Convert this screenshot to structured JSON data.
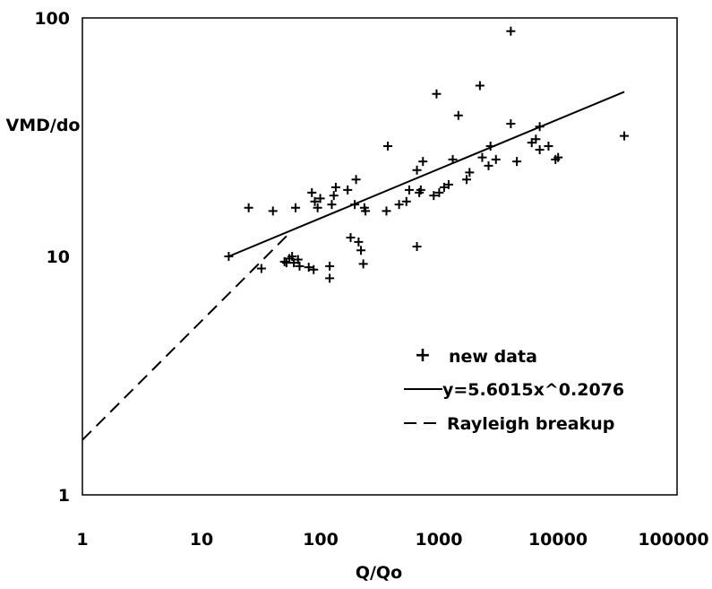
{
  "chart_data": {
    "type": "scatter",
    "title": "",
    "xlabel": "Q/Qo",
    "ylabel": "VMD/do",
    "x_scale": "log",
    "y_scale": "log",
    "xlim": [
      1,
      100000
    ],
    "ylim": [
      1,
      100
    ],
    "x_ticks": [
      "1",
      "10",
      "100",
      "1000",
      "10000",
      "100000"
    ],
    "y_ticks": [
      "1",
      "10",
      "100"
    ],
    "grid": false,
    "legend_position": "bottom-right",
    "series": [
      {
        "name": "new data",
        "kind": "scatter",
        "marker": "+",
        "points": [
          [
            17,
            10
          ],
          [
            25,
            16
          ],
          [
            32,
            8.9
          ],
          [
            40,
            15.5
          ],
          [
            50,
            9.5
          ],
          [
            52,
            9.4
          ],
          [
            55,
            9.8
          ],
          [
            58,
            10
          ],
          [
            60,
            9.4
          ],
          [
            62,
            16
          ],
          [
            65,
            9.7
          ],
          [
            67,
            9.1
          ],
          [
            80,
            9.0
          ],
          [
            85,
            18.5
          ],
          [
            88,
            8.8
          ],
          [
            90,
            17
          ],
          [
            95,
            16
          ],
          [
            100,
            17.5
          ],
          [
            120,
            8.1
          ],
          [
            120,
            9.1
          ],
          [
            125,
            16.5
          ],
          [
            130,
            18
          ],
          [
            135,
            19.5
          ],
          [
            170,
            19
          ],
          [
            180,
            12
          ],
          [
            195,
            16.5
          ],
          [
            200,
            21
          ],
          [
            210,
            11.5
          ],
          [
            220,
            10.6
          ],
          [
            230,
            9.3
          ],
          [
            235,
            16
          ],
          [
            240,
            15.5
          ],
          [
            360,
            15.5
          ],
          [
            370,
            29
          ],
          [
            460,
            16.5
          ],
          [
            530,
            17
          ],
          [
            560,
            19
          ],
          [
            650,
            23
          ],
          [
            650,
            11
          ],
          [
            680,
            18.5
          ],
          [
            700,
            19
          ],
          [
            730,
            25
          ],
          [
            900,
            18
          ],
          [
            950,
            48
          ],
          [
            1000,
            18.5
          ],
          [
            1100,
            19.5
          ],
          [
            1200,
            20
          ],
          [
            1300,
            25.5
          ],
          [
            1450,
            39
          ],
          [
            1700,
            21
          ],
          [
            1800,
            22.5
          ],
          [
            2200,
            52
          ],
          [
            2300,
            26
          ],
          [
            2600,
            24
          ],
          [
            2700,
            29
          ],
          [
            3000,
            25.5
          ],
          [
            4000,
            88
          ],
          [
            4000,
            36
          ],
          [
            4500,
            25
          ],
          [
            6000,
            30
          ],
          [
            6500,
            31
          ],
          [
            7000,
            28
          ],
          [
            7000,
            35
          ],
          [
            8300,
            29
          ],
          [
            9500,
            25.5
          ],
          [
            10000,
            26
          ],
          [
            36000,
            32
          ]
        ]
      },
      {
        "name": "y=5.6015x^0.2076",
        "kind": "line",
        "style": "solid",
        "points": [
          [
            17,
            10
          ],
          [
            36000,
            49
          ]
        ]
      },
      {
        "name": "Rayleigh breakup",
        "kind": "line",
        "style": "dashed",
        "points": [
          [
            1,
            1.7
          ],
          [
            55,
            12.5
          ]
        ]
      }
    ]
  }
}
